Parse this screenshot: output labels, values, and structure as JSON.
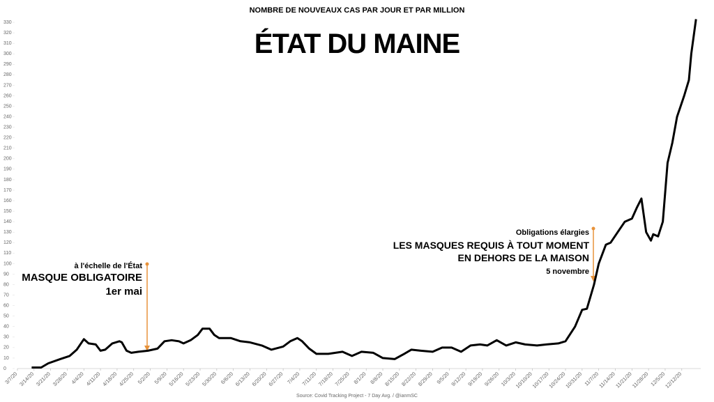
{
  "chart_data": {
    "type": "line",
    "subtitle": "NOMBRE DE NOUVEAUX CAS PAR JOUR ET PAR MILLION",
    "title": "ÉTAT DU MAINE",
    "source": "Source: Covid Tracking Project - 7 Day Avg. / @ianmSC",
    "annotations": [
      {
        "lines": [
          "à l'échelle de l'État",
          "MASQUE OBLIGATOIRE",
          "1er mai"
        ]
      },
      {
        "lines": [
          "Obligations élargies",
          "LES MASQUES REQUIS À TOUT MOMENT",
          "EN DEHORS DE LA MAISON",
          "5 novembre"
        ]
      }
    ],
    "x": [
      "3/13/20",
      "3/17/20",
      "3/20/20",
      "3/25/20",
      "3/29/20",
      "4/1/20",
      "4/4/20",
      "4/6/20",
      "4/9/20",
      "4/11/20",
      "4/13/20",
      "4/16/20",
      "4/19/20",
      "4/20/20",
      "4/22/20",
      "4/24/20",
      "4/27/20",
      "5/1/20",
      "5/5/20",
      "5/8/20",
      "5/11/20",
      "5/14/20",
      "5/16/20",
      "5/19/20",
      "5/22/20",
      "5/24/20",
      "5/27/20",
      "5/29/20",
      "5/31/20",
      "6/5/20",
      "6/9/20",
      "6/13/20",
      "6/18/20",
      "6/22/20",
      "6/27/20",
      "6/30/20",
      "7/3/20",
      "7/5/20",
      "7/8/20",
      "7/11/20",
      "7/16/20",
      "7/19/20",
      "7/22/20",
      "7/26/20",
      "7/30/20",
      "8/4/20",
      "8/8/20",
      "8/13/20",
      "8/17/20",
      "8/20/20",
      "8/24/20",
      "8/29/20",
      "9/2/20",
      "9/6/20",
      "9/10/20",
      "9/14/20",
      "9/18/20",
      "9/21/20",
      "9/25/20",
      "9/29/20",
      "10/3/20",
      "10/7/20",
      "10/12/20",
      "10/16/20",
      "10/21/20",
      "10/24/20",
      "10/28/20",
      "10/31/20",
      "11/2/20",
      "11/5/20",
      "11/7/20",
      "11/10/20",
      "11/12/20",
      "11/15/20",
      "11/18/20",
      "11/21/20",
      "11/23/20",
      "11/25/20",
      "11/27/20",
      "11/29/20",
      "11/30/20",
      "12/2/20",
      "12/4/20",
      "12/6/20",
      "12/8/20",
      "12/10/20",
      "12/13/20",
      "12/15/20",
      "12/16/20",
      "12/18/20"
    ],
    "series": [
      {
        "color": "#000000",
        "values": [
          1,
          1,
          5,
          9,
          12,
          18,
          28,
          24,
          23,
          17,
          18,
          24,
          26,
          25,
          17,
          15,
          16,
          17,
          19,
          26,
          27,
          26,
          24,
          27,
          32,
          38,
          38,
          32,
          29,
          29,
          26,
          25,
          22,
          18,
          21,
          26,
          29,
          26,
          19,
          14,
          14,
          15,
          16,
          12,
          16,
          15,
          10,
          9,
          14,
          18,
          17,
          16,
          20,
          20,
          16,
          22,
          23,
          22,
          27,
          22,
          25,
          23,
          22,
          23,
          24,
          26,
          40,
          56,
          57,
          80,
          100,
          118,
          120,
          130,
          140,
          143,
          153,
          162,
          130,
          122,
          128,
          126,
          140,
          196,
          215,
          240,
          260,
          275,
          300,
          333
        ]
      }
    ],
    "xlim": [
      "3/7/20",
      "12/20/20"
    ],
    "xticks": [
      "3/7/20",
      "3/14/20",
      "3/21/20",
      "3/28/20",
      "4/4/20",
      "4/11/20",
      "4/18/20",
      "4/25/20",
      "5/2/20",
      "5/9/20",
      "5/16/20",
      "5/23/20",
      "5/30/20",
      "6/6/20",
      "6/13/20",
      "6/20/20",
      "6/27/20",
      "7/4/20",
      "7/11/20",
      "7/18/20",
      "7/25/20",
      "8/1/20",
      "8/8/20",
      "8/15/20",
      "8/22/20",
      "8/29/20",
      "9/5/20",
      "9/12/20",
      "9/19/20",
      "9/26/20",
      "10/3/20",
      "10/10/20",
      "10/17/20",
      "10/24/20",
      "10/31/20",
      "11/7/20",
      "11/14/20",
      "11/21/20",
      "11/28/20",
      "12/5/20",
      "12/12/20"
    ],
    "ylim": [
      0,
      340
    ],
    "yticks": [
      0,
      10,
      20,
      30,
      40,
      50,
      60,
      70,
      80,
      90,
      100,
      110,
      120,
      130,
      140,
      150,
      160,
      170,
      180,
      190,
      200,
      210,
      220,
      230,
      240,
      250,
      260,
      270,
      280,
      290,
      300,
      310,
      320,
      330
    ]
  }
}
